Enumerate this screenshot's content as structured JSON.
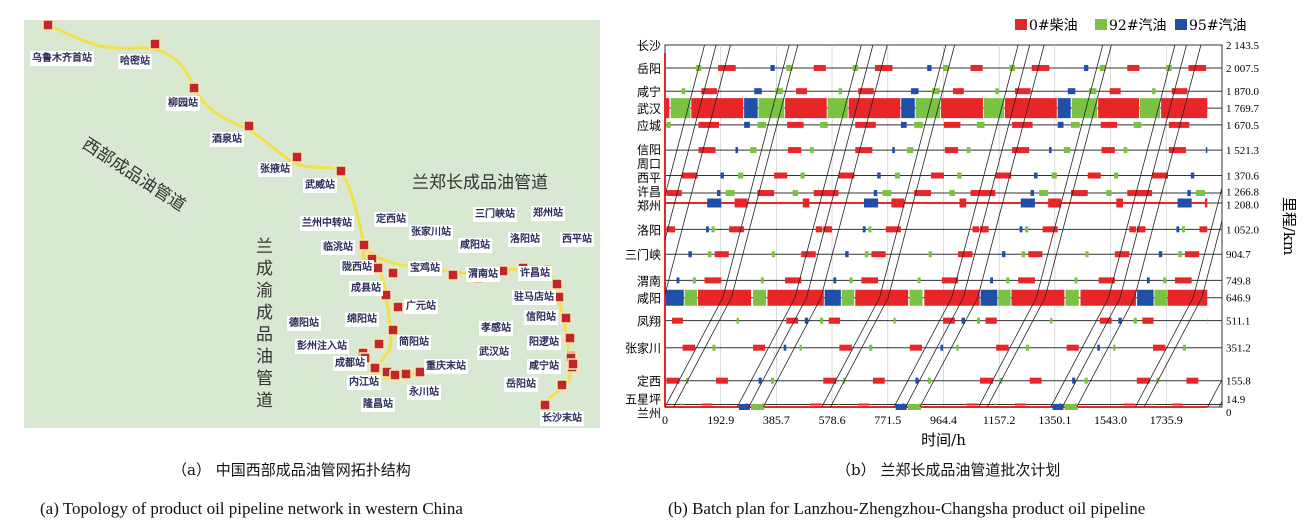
{
  "panel_a": {
    "pipelines": {
      "west": "西部成品油管道",
      "lzc": "兰郑长成品油管道",
      "lcy": "兰成渝成品油管道"
    },
    "stations": [
      {
        "name": "乌鲁木齐首站",
        "lx": 30,
        "ly": 51
      },
      {
        "name": "哈密站",
        "lx": 118,
        "ly": 54
      },
      {
        "name": "柳园站",
        "lx": 166,
        "ly": 96
      },
      {
        "name": "酒泉站",
        "lx": 210,
        "ly": 132
      },
      {
        "name": "张掖站",
        "lx": 258,
        "ly": 162
      },
      {
        "name": "武威站",
        "lx": 303,
        "ly": 178
      },
      {
        "name": "兰州中转站",
        "lx": 300,
        "ly": 216
      },
      {
        "name": "定西站",
        "lx": 374,
        "ly": 212
      },
      {
        "name": "张家川站",
        "lx": 409,
        "ly": 225
      },
      {
        "name": "临洮站",
        "lx": 321,
        "ly": 240
      },
      {
        "name": "陇西站",
        "lx": 340,
        "ly": 260
      },
      {
        "name": "宝鸡站",
        "lx": 408,
        "ly": 261
      },
      {
        "name": "成县站",
        "lx": 349,
        "ly": 281
      },
      {
        "name": "咸阳站",
        "lx": 458,
        "ly": 238
      },
      {
        "name": "渭南站",
        "lx": 466,
        "ly": 267
      },
      {
        "name": "三门峡站",
        "lx": 473,
        "ly": 207
      },
      {
        "name": "洛阳站",
        "lx": 508,
        "ly": 232
      },
      {
        "name": "郑州站",
        "lx": 531,
        "ly": 206
      },
      {
        "name": "西平站",
        "lx": 560,
        "ly": 232
      },
      {
        "name": "许昌站",
        "lx": 518,
        "ly": 266
      },
      {
        "name": "驻马店站",
        "lx": 512,
        "ly": 290
      },
      {
        "name": "广元站",
        "lx": 404,
        "ly": 299
      },
      {
        "name": "绵阳站",
        "lx": 345,
        "ly": 312
      },
      {
        "name": "德阳站",
        "lx": 287,
        "ly": 316
      },
      {
        "name": "彭州注入站",
        "lx": 295,
        "ly": 339
      },
      {
        "name": "简阳站",
        "lx": 397,
        "ly": 335
      },
      {
        "name": "成都站",
        "lx": 333,
        "ly": 356
      },
      {
        "name": "内江站",
        "lx": 347,
        "ly": 375
      },
      {
        "name": "重庆末站",
        "lx": 424,
        "ly": 359
      },
      {
        "name": "永川站",
        "lx": 407,
        "ly": 385
      },
      {
        "name": "隆昌站",
        "lx": 361,
        "ly": 397
      },
      {
        "name": "孝感站",
        "lx": 479,
        "ly": 321
      },
      {
        "name": "信阳站",
        "lx": 524,
        "ly": 310
      },
      {
        "name": "阳逻站",
        "lx": 527,
        "ly": 335
      },
      {
        "name": "武汉站",
        "lx": 477,
        "ly": 345
      },
      {
        "name": "咸宁站",
        "lx": 527,
        "ly": 359
      },
      {
        "name": "岳阳站",
        "lx": 504,
        "ly": 377
      },
      {
        "name": "长沙末站",
        "lx": 540,
        "ly": 411
      }
    ]
  },
  "chart_data": {
    "type": "batch-schedule",
    "title": "",
    "xlabel": "时间/h",
    "ylabel": "里程/km",
    "xlim": [
      0,
      1929
    ],
    "ylim": [
      0,
      2143.5
    ],
    "xticks": [
      "0",
      "192.9",
      "385.7",
      "578.6",
      "771.5",
      "964.4",
      "1157.2",
      "1350.1",
      "1543.0",
      "1735.9"
    ],
    "xtick_values": [
      0,
      192.9,
      385.7,
      578.6,
      771.5,
      964.4,
      1157.2,
      1350.1,
      1543.0,
      1735.9
    ],
    "legend": [
      {
        "label": "0#柴油",
        "color": "#e8262a",
        "key": "r"
      },
      {
        "label": "92#汽油",
        "color": "#7cc242",
        "key": "g"
      },
      {
        "label": "95#汽油",
        "color": "#1f4fa8",
        "key": "b"
      }
    ],
    "stations": [
      {
        "name": "长沙",
        "km": 2143.5,
        "km_label": "2 143.5"
      },
      {
        "name": "岳阳",
        "km": 2007.5,
        "km_label": "2 007.5"
      },
      {
        "name": "咸宁",
        "km": 1870.0,
        "km_label": "1 870.0"
      },
      {
        "name": "武汉",
        "km": 1769.7,
        "km_label": "1 769.7"
      },
      {
        "name": "应城",
        "km": 1670.5,
        "km_label": "1 670.5"
      },
      {
        "name": "信阳",
        "km": 1521.3,
        "km_label": "1 521.3"
      },
      {
        "name": "周口",
        "km": 1445,
        "km_label": ""
      },
      {
        "name": "西平",
        "km": 1370.6,
        "km_label": "1 370.6"
      },
      {
        "name": "许昌",
        "km": 1266.8,
        "km_label": "1 266.8"
      },
      {
        "name": "郑州",
        "km": 1208.0,
        "km_label": "1 208.0"
      },
      {
        "name": "洛阳",
        "km": 1052.0,
        "km_label": "1 052.0"
      },
      {
        "name": "三门峡",
        "km": 904.7,
        "km_label": "904.7"
      },
      {
        "name": "渭南",
        "km": 749.8,
        "km_label": "749.8"
      },
      {
        "name": "咸阳",
        "km": 646.9,
        "km_label": "646.9"
      },
      {
        "name": "凤翔",
        "km": 511.1,
        "km_label": "511.1"
      },
      {
        "name": "张家川",
        "km": 351.2,
        "km_label": "351.2"
      },
      {
        "name": "定西",
        "km": 155.8,
        "km_label": "155.8"
      },
      {
        "name": "五星坪",
        "km": 14.9,
        "km_label": "14.9"
      },
      {
        "name": "兰州",
        "km": 0,
        "km_label": "0"
      }
    ],
    "cycle_hours": 543,
    "data_end_hours": 1878,
    "station_batches_per_cycle": {
      "岳阳": [
        [
          107,
          126,
          "g"
        ],
        [
          184,
          245,
          "r"
        ],
        [
          365,
          380,
          "b"
        ],
        [
          420,
          441,
          "g"
        ],
        [
          515,
          557,
          "r"
        ]
      ],
      "咸宁": [
        [
          58,
          70,
          "g"
        ],
        [
          126,
          180,
          "r"
        ],
        [
          309,
          335,
          "b"
        ],
        [
          382,
          408,
          "g"
        ],
        [
          454,
          492,
          "r"
        ]
      ],
      "应城": [
        [
          5,
          20,
          "g"
        ],
        [
          116,
          187,
          "r"
        ],
        [
          274,
          294,
          "b"
        ],
        [
          320,
          350,
          "g"
        ],
        [
          423,
          480,
          "r"
        ],
        [
          537,
          563,
          "g"
        ]
      ],
      "信阳": [
        [
          116,
          175,
          "r"
        ],
        [
          244,
          253,
          "b"
        ],
        [
          295,
          317,
          "g"
        ],
        [
          426,
          472,
          "r"
        ],
        [
          502,
          515,
          "g"
        ]
      ],
      "西平": [
        [
          58,
          113,
          "r"
        ],
        [
          192,
          204,
          "b"
        ],
        [
          253,
          271,
          "g"
        ],
        [
          378,
          423,
          "r"
        ],
        [
          469,
          484,
          "g"
        ]
      ],
      "许昌": [
        [
          5,
          58,
          "r"
        ],
        [
          180,
          192,
          "b"
        ],
        [
          210,
          241,
          "g"
        ],
        [
          320,
          378,
          "r"
        ],
        [
          442,
          461,
          "g"
        ],
        [
          515,
          598,
          "r"
        ]
      ],
      "郑州": [
        [
          146,
          195,
          "b"
        ],
        [
          241,
          286,
          "r"
        ],
        [
          477,
          500,
          "r"
        ]
      ],
      "洛阳": [
        [
          5,
          35,
          "r"
        ],
        [
          142,
          152,
          "b"
        ],
        [
          161,
          172,
          "g"
        ],
        [
          222,
          274,
          "r"
        ],
        [
          522,
          545,
          "r"
        ],
        [
          553,
          576,
          "r"
        ]
      ],
      "三门峡": [
        [
          81,
          93,
          "b"
        ],
        [
          149,
          161,
          "g"
        ],
        [
          172,
          221,
          "r"
        ],
        [
          370,
          381,
          "g"
        ],
        [
          472,
          522,
          "r"
        ]
      ],
      "渭南": [
        [
          40,
          50,
          "b"
        ],
        [
          96,
          107,
          "g"
        ],
        [
          137,
          195,
          "r"
        ],
        [
          332,
          342,
          "g"
        ],
        [
          416,
          472,
          "r"
        ]
      ],
      "凤翔": [
        [
          24,
          62,
          "r"
        ],
        [
          248,
          256,
          "g"
        ],
        [
          420,
          461,
          "r"
        ],
        [
          484,
          496,
          "b"
        ],
        [
          537,
          548,
          "g"
        ],
        [
          568,
          606,
          "r"
        ]
      ],
      "张家川": [
        [
          61,
          104,
          "r"
        ],
        [
          164,
          175,
          "g"
        ],
        [
          305,
          347,
          "r"
        ],
        [
          411,
          420,
          "b"
        ],
        [
          466,
          474,
          "g"
        ]
      ],
      "定西": [
        [
          5,
          50,
          "r"
        ],
        [
          73,
          81,
          "g"
        ],
        [
          177,
          218,
          "r"
        ],
        [
          324,
          335,
          "b"
        ],
        [
          367,
          378,
          "g"
        ]
      ],
      "五星坪": [
        [
          55,
          61,
          "g"
        ],
        [
          126,
          164,
          "r"
        ],
        [
          279,
          286,
          "b"
        ],
        [
          335,
          342,
          "g"
        ],
        [
          502,
          541,
          "r"
        ]
      ],
      "兰州": [
        [
          256,
          294,
          "b"
        ],
        [
          298,
          344,
          "g"
        ]
      ]
    },
    "thin_full_rows": {
      "郑州": "r",
      "兰州": "r"
    },
    "major_station_batches": {
      "武汉": [
        [
          0,
          15,
          "r"
        ],
        [
          20,
          88,
          "g"
        ],
        [
          91,
          271,
          "r"
        ],
        [
          274,
          321,
          "b"
        ],
        [
          324,
          413,
          "g"
        ],
        [
          416,
          560,
          "r"
        ],
        [
          563,
          633,
          "g"
        ],
        [
          636,
          815,
          "r"
        ],
        [
          818,
          865,
          "b"
        ],
        [
          868,
          953,
          "g"
        ],
        [
          956,
          1101,
          "r"
        ],
        [
          1104,
          1174,
          "g"
        ],
        [
          1177,
          1357,
          "r"
        ],
        [
          1360,
          1405,
          "b"
        ],
        [
          1409,
          1497,
          "g"
        ],
        [
          1500,
          1642,
          "r"
        ],
        [
          1645,
          1715,
          "g"
        ],
        [
          1718,
          1878,
          "r"
        ]
      ],
      "咸阳": [
        [
          0,
          65,
          "b"
        ],
        [
          68,
          111,
          "g"
        ],
        [
          114,
          298,
          "r"
        ],
        [
          305,
          350,
          "g"
        ],
        [
          355,
          550,
          "r"
        ],
        [
          553,
          609,
          "b"
        ],
        [
          612,
          655,
          "g"
        ],
        [
          659,
          842,
          "r"
        ],
        [
          847,
          892,
          "g"
        ],
        [
          898,
          1090,
          "r"
        ],
        [
          1093,
          1151,
          "b"
        ],
        [
          1154,
          1197,
          "g"
        ],
        [
          1200,
          1383,
          "r"
        ],
        [
          1387,
          1433,
          "g"
        ],
        [
          1439,
          1631,
          "r"
        ],
        [
          1635,
          1692,
          "b"
        ],
        [
          1695,
          1738,
          "g"
        ],
        [
          1740,
          1878,
          "r"
        ]
      ]
    },
    "interface_start_hours_per_cycle": [
      0,
      30,
      250,
      290,
      340
    ],
    "interface_transit_hours": {
      "兰州_to_咸阳": 200,
      "咸阳_to_长沙": 230
    }
  },
  "captions": {
    "a_cn": "（a） 中国西部成品油管网拓扑结构",
    "b_cn": "（b） 兰郑长成品油管道批次计划",
    "a_en": "(a)    Topology of product oil pipeline network in western China",
    "b_en": "(b)    Batch plan for Lanzhou-Zhengzhou-Changsha product oil pipeline"
  }
}
